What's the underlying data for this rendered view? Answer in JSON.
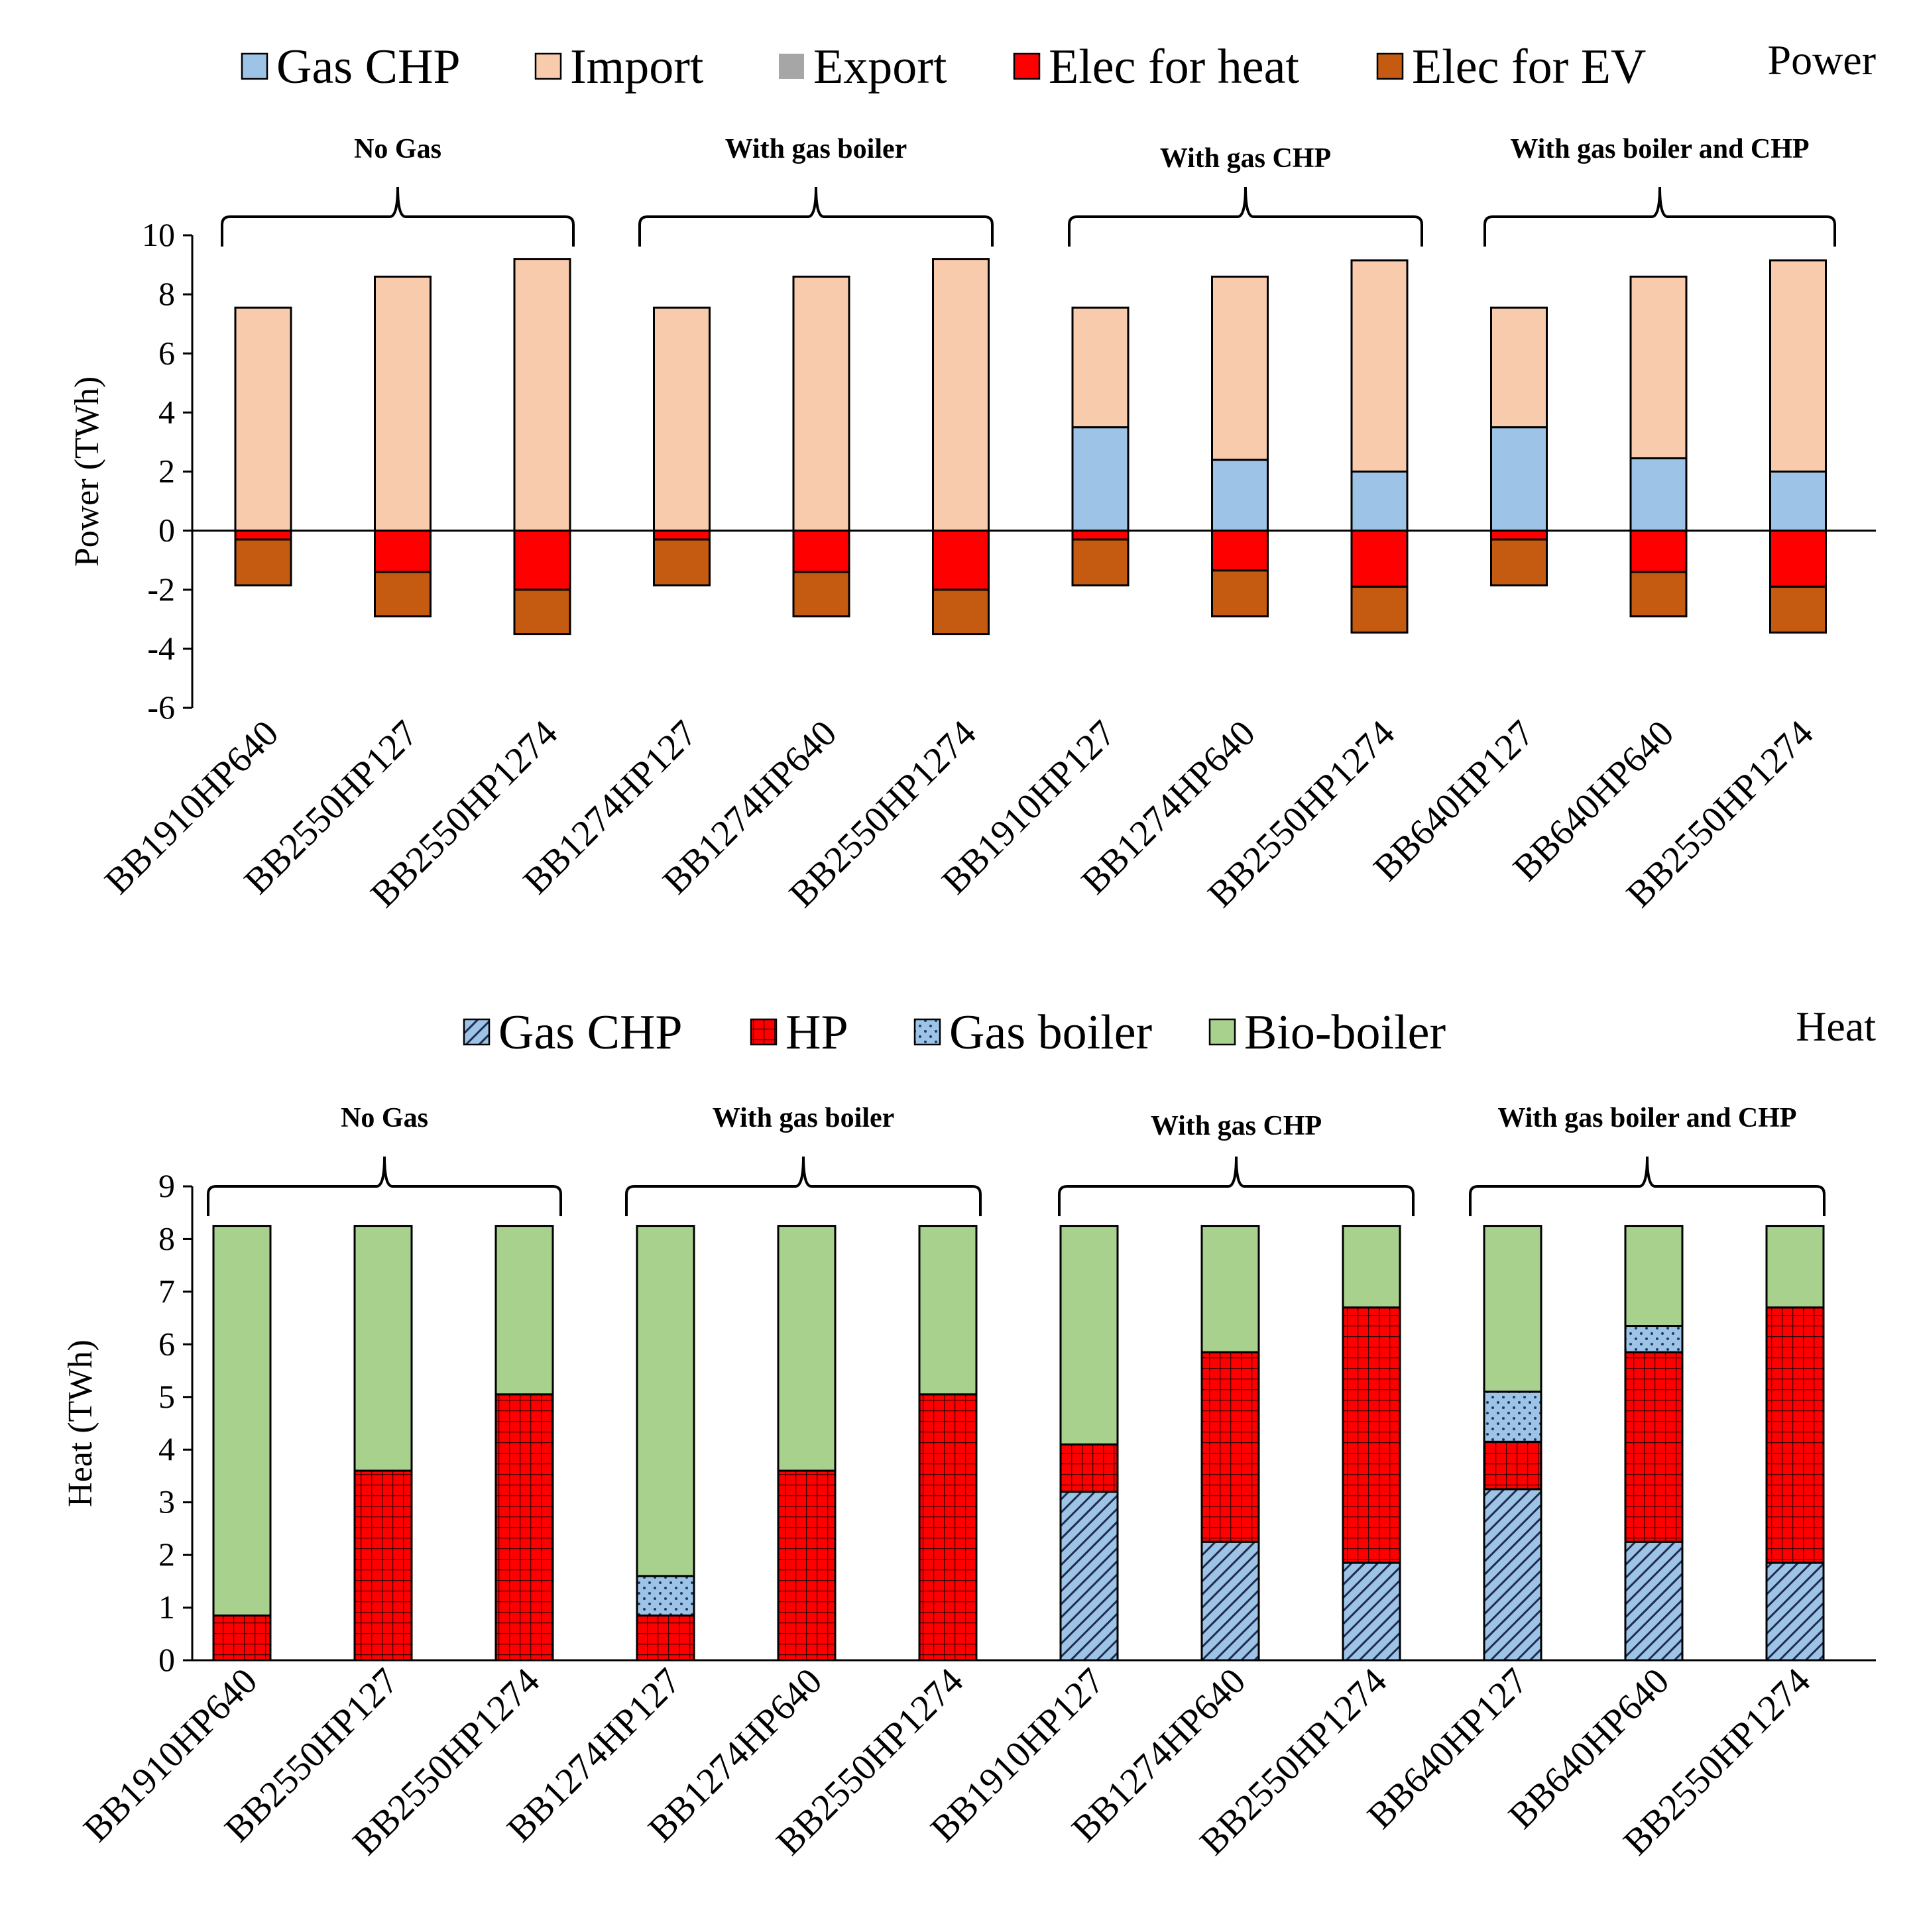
{
  "chart_data": [
    {
      "type": "bar",
      "stacked": true,
      "panel_label": "Power",
      "ylabel": "Power (TWh)",
      "ylim": [
        -6,
        10
      ],
      "yticks": [
        -6,
        -4,
        -2,
        0,
        2,
        4,
        6,
        8,
        10
      ],
      "categories": [
        "BB1910HP640",
        "BB2550HP127",
        "BB2550HP1274",
        "BB1274HP127",
        "BB1274HP640",
        "BB2550HP1274",
        "BB1910HP127",
        "BB1274HP640",
        "BB2550HP1274",
        "BB640HP127",
        "BB640HP640",
        "BB2550HP1274"
      ],
      "groups": [
        {
          "label": "No Gas",
          "start": 0,
          "end": 2
        },
        {
          "label": "With gas boiler",
          "start": 3,
          "end": 5
        },
        {
          "label": "With gas CHP",
          "start": 6,
          "end": 8
        },
        {
          "label": "With gas boiler and CHP",
          "start": 9,
          "end": 11
        }
      ],
      "legend": [
        "Gas CHP",
        "Import",
        "Export",
        "Elec for heat",
        "Elec for EV"
      ],
      "series": [
        {
          "name": "Gas CHP",
          "color": "#9dc3e6",
          "values": [
            0,
            0,
            0,
            0,
            0,
            0,
            3.5,
            2.4,
            2.0,
            3.5,
            2.45,
            2.0
          ]
        },
        {
          "name": "Import",
          "color": "#f8cbad",
          "values": [
            7.55,
            8.6,
            9.2,
            7.55,
            8.6,
            9.2,
            4.05,
            6.2,
            7.15,
            4.05,
            6.15,
            7.15
          ]
        },
        {
          "name": "Export",
          "color": "#a6a6a6",
          "values": [
            0,
            0,
            0,
            0,
            0,
            0,
            0,
            0,
            0,
            0,
            0,
            0
          ]
        },
        {
          "name": "Elec for heat",
          "color": "#ff0000",
          "values": [
            -0.3,
            -1.4,
            -2.0,
            -0.3,
            -1.4,
            -2.0,
            -0.3,
            -1.35,
            -1.9,
            -0.3,
            -1.4,
            -1.9
          ]
        },
        {
          "name": "Elec for EV",
          "color": "#c55a11",
          "values": [
            -1.55,
            -1.5,
            -1.5,
            -1.55,
            -1.5,
            -1.5,
            -1.55,
            -1.55,
            -1.55,
            -1.55,
            -1.5,
            -1.55
          ]
        }
      ]
    },
    {
      "type": "bar",
      "stacked": true,
      "panel_label": "Heat",
      "ylabel": "Heat (TWh)",
      "ylim": [
        0,
        9
      ],
      "yticks": [
        0,
        1,
        2,
        3,
        4,
        5,
        6,
        7,
        8,
        9
      ],
      "categories": [
        "BB1910HP640",
        "BB2550HP127",
        "BB2550HP1274",
        "BB1274HP127",
        "BB1274HP640",
        "BB2550HP1274",
        "BB1910HP127",
        "BB1274HP640",
        "BB2550HP1274",
        "BB640HP127",
        "BB640HP640",
        "BB2550HP1274"
      ],
      "groups": [
        {
          "label": "No Gas",
          "start": 0,
          "end": 2
        },
        {
          "label": "With gas boiler",
          "start": 3,
          "end": 5
        },
        {
          "label": "With gas CHP",
          "start": 6,
          "end": 8
        },
        {
          "label": "With gas boiler and CHP",
          "start": 9,
          "end": 11
        }
      ],
      "legend": [
        "Gas CHP",
        "HP",
        "Gas boiler",
        "Bio-boiler"
      ],
      "series": [
        {
          "name": "Gas CHP",
          "color": "#9dc3e6",
          "pattern": "diagonal",
          "values": [
            0,
            0,
            0,
            0,
            0,
            0,
            3.2,
            2.25,
            1.85,
            3.25,
            2.25,
            1.85
          ]
        },
        {
          "name": "HP",
          "color": "#ff0000",
          "pattern": "grid",
          "values": [
            0.85,
            3.6,
            5.05,
            0.85,
            3.6,
            5.05,
            0.9,
            3.6,
            4.85,
            0.9,
            3.6,
            4.85
          ]
        },
        {
          "name": "Gas boiler",
          "color": "#9dc3e6",
          "pattern": "dots",
          "values": [
            0,
            0,
            0,
            0.75,
            0,
            0,
            0,
            0,
            0,
            0.95,
            0.5,
            0
          ]
        },
        {
          "name": "Bio-boiler",
          "color": "#a9d18e",
          "pattern": "solid",
          "values": [
            7.4,
            4.65,
            3.2,
            6.65,
            4.65,
            3.2,
            4.15,
            2.4,
            1.55,
            3.15,
            1.9,
            1.55
          ]
        }
      ]
    }
  ]
}
